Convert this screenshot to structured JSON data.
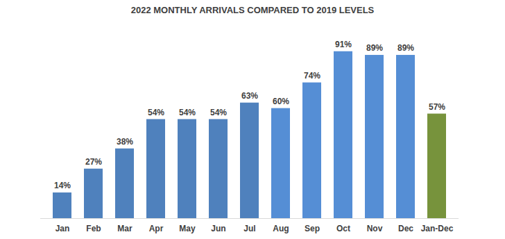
{
  "chart_data": {
    "type": "bar",
    "title": "2022 MONTHLY ARRIVALS COMPARED TO 2019 LEVELS",
    "categories": [
      "Jan",
      "Feb",
      "Mar",
      "Apr",
      "May",
      "Jun",
      "Jul",
      "Aug",
      "Sep",
      "Oct",
      "Nov",
      "Dec",
      "Jan-Dec"
    ],
    "values": [
      14,
      27,
      38,
      54,
      54,
      54,
      63,
      60,
      74,
      91,
      89,
      89,
      57
    ],
    "value_labels": [
      "14%",
      "27%",
      "38%",
      "54%",
      "54%",
      "54%",
      "63%",
      "60%",
      "74%",
      "91%",
      "89%",
      "89%",
      "57%"
    ],
    "colors": [
      "#4f81bd",
      "#4f81bd",
      "#4f81bd",
      "#4f81bd",
      "#4f81bd",
      "#4f81bd",
      "#4f81bd",
      "#558ed5",
      "#558ed5",
      "#558ed5",
      "#558ed5",
      "#558ed5",
      "#77933c"
    ],
    "ylim": [
      0,
      100
    ],
    "grid": false,
    "data_labels": true,
    "tick_labels": "x"
  }
}
